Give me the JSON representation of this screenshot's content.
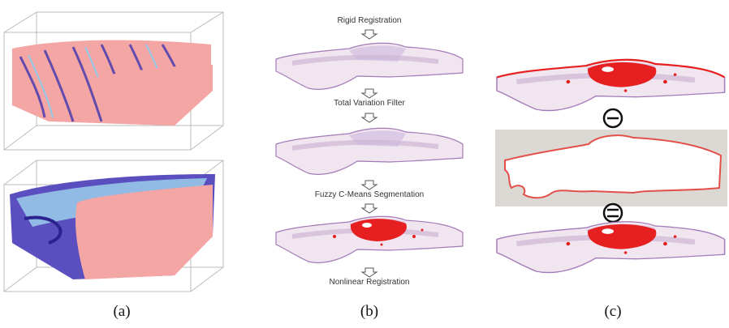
{
  "panels": [
    {
      "label": "(a)"
    },
    {
      "label": "(b)",
      "steps": [
        "Rigid Registration",
        "Total Variation Filter",
        "Fuzzy C-Means Segmentation",
        "Nonlinear Registration"
      ]
    },
    {
      "label": "(c)"
    }
  ]
}
